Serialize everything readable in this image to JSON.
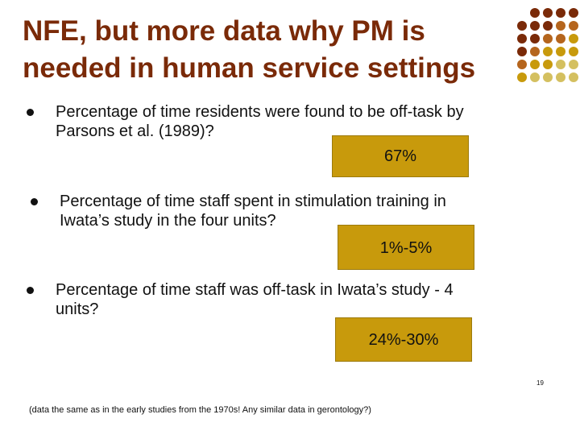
{
  "slide": {
    "title": {
      "line1": "NFE, but more data why PM is",
      "line2": "needed in human service settings"
    },
    "items": [
      {
        "question_line1": "Percentage of time residents were found to be off-task by",
        "question_line2": "Parsons et al. (1989)?",
        "answer": "67%"
      },
      {
        "question_line1": "Percentage of time staff spent in stimulation training in",
        "question_line2": "Iwata’s study in the four units?",
        "answer": "1%-5%"
      },
      {
        "question_line1": "Percentage of time staff was off-task in Iwata’s study - 4",
        "question_line2": "units?",
        "answer": "24%-30%"
      }
    ],
    "footnote": "(data the same as in the early studies from the 1970s! Any similar data in gerontology?)",
    "page_number": "19"
  },
  "colors": {
    "title": "#7a2a08",
    "answer_box": "#c89a0c",
    "dot_dark": "#7a2a08",
    "dot_mid": "#b5651d",
    "dot_gold": "#c89a0c",
    "dot_light": "#d4c060"
  }
}
